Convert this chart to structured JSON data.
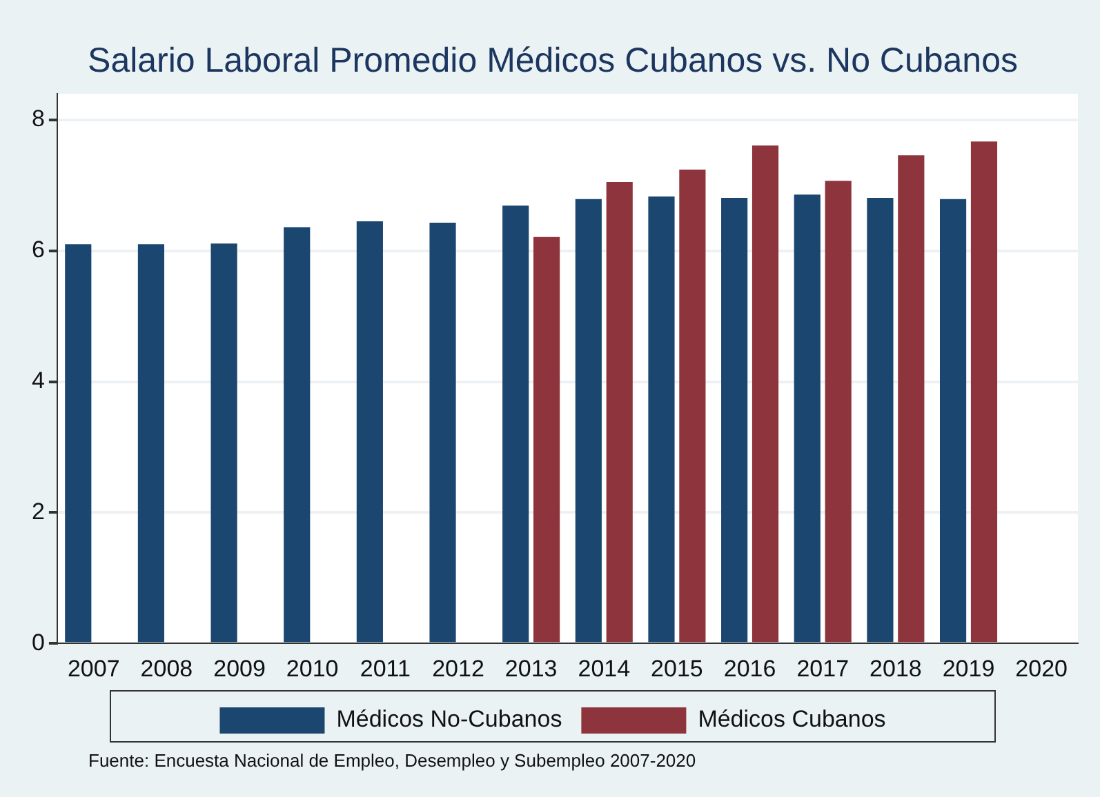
{
  "chart_data": {
    "type": "bar",
    "title": "Salario Laboral Promedio Médicos Cubanos vs. No Cubanos",
    "categories": [
      "2007",
      "2008",
      "2009",
      "2010",
      "2011",
      "2012",
      "2013",
      "2014",
      "2015",
      "2016",
      "2017",
      "2018",
      "2019",
      "2020"
    ],
    "series": [
      {
        "name": "Médicos No-Cubanos",
        "color": "#1a4670",
        "values": [
          6.1,
          6.1,
          6.11,
          6.36,
          6.45,
          6.43,
          6.69,
          6.79,
          6.83,
          6.81,
          6.86,
          6.81,
          6.79,
          null
        ]
      },
      {
        "name": "Médicos Cubanos",
        "color": "#8e343c",
        "values": [
          null,
          null,
          null,
          null,
          null,
          null,
          6.21,
          7.05,
          7.24,
          7.61,
          7.07,
          7.46,
          7.67,
          null
        ]
      }
    ],
    "ylim": [
      0,
      8.4
    ],
    "yticks": [
      0,
      2,
      4,
      6,
      8
    ],
    "grid": "y",
    "legend": "bottom",
    "annotations": [
      "Fuente: Encuesta Nacional de Empleo, Desempleo y Subempleo 2007-2020"
    ]
  }
}
